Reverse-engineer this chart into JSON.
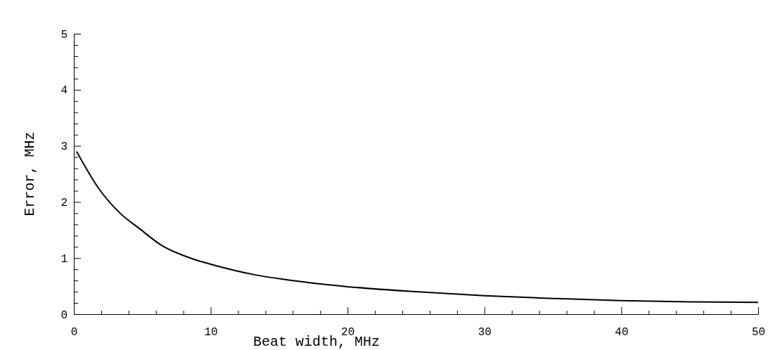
{
  "chart_data": {
    "type": "line",
    "xlabel": "Beat width, MHz",
    "ylabel": "Error, MHz",
    "color": "#000000",
    "x": [
      0.2,
      1.82,
      3.38,
      4.77,
      6.33,
      8.75,
      10.14,
      13.27,
      15.34,
      20,
      25,
      30,
      35,
      40,
      45,
      50
    ],
    "values": [
      2.9,
      2.24,
      1.8,
      1.53,
      1.24,
      0.98,
      0.88,
      0.7,
      0.62,
      0.49,
      0.4,
      0.33,
      0.28,
      0.24,
      0.22,
      0.21
    ],
    "xlim": [
      0,
      50
    ],
    "ylim": [
      0,
      5
    ],
    "xticks": [
      0,
      {
        "value": 2,
        "label": null
      },
      {
        "value": 4,
        "label": null
      },
      {
        "value": 6,
        "label": null
      },
      {
        "value": 8,
        "label": null
      },
      10,
      {
        "value": 12,
        "label": null
      },
      {
        "value": 14,
        "label": null
      },
      {
        "value": 16,
        "label": null
      },
      {
        "value": 18,
        "label": null
      },
      20,
      {
        "value": 22,
        "label": null
      },
      {
        "value": 24,
        "label": null
      },
      {
        "value": 26,
        "label": null
      },
      {
        "value": 28,
        "label": null
      },
      30,
      {
        "value": 32,
        "label": null
      },
      {
        "value": 34,
        "label": null
      },
      {
        "value": 36,
        "label": null
      },
      {
        "value": 38,
        "label": null
      },
      40,
      {
        "value": 42,
        "label": null
      },
      {
        "value": 44,
        "label": null
      },
      {
        "value": 46,
        "label": null
      },
      {
        "value": 48,
        "label": null
      },
      50
    ],
    "yticks": [
      0,
      {
        "value": 0.2,
        "label": null
      },
      {
        "value": 0.4,
        "label": null
      },
      {
        "value": 0.6,
        "label": null
      },
      {
        "value": 0.8,
        "label": null
      },
      1,
      {
        "value": 1.2,
        "label": null
      },
      {
        "value": 1.4,
        "label": null
      },
      {
        "value": 1.6,
        "label": null
      },
      {
        "value": 1.8,
        "label": null
      },
      2,
      {
        "value": 2.2,
        "label": null
      },
      {
        "value": 2.4,
        "label": null
      },
      {
        "value": 2.6,
        "label": null
      },
      {
        "value": 2.8,
        "label": null
      },
      3,
      {
        "value": 3.2,
        "label": null
      },
      {
        "value": 3.4,
        "label": null
      },
      {
        "value": 3.6,
        "label": null
      },
      {
        "value": 3.8,
        "label": null
      },
      4,
      {
        "value": 4.2,
        "label": null
      },
      {
        "value": 4.4,
        "label": null
      },
      {
        "value": 4.6,
        "label": null
      },
      {
        "value": 4.8,
        "label": null
      },
      5
    ],
    "grid": false,
    "marker": "none",
    "line_style": "solid"
  }
}
